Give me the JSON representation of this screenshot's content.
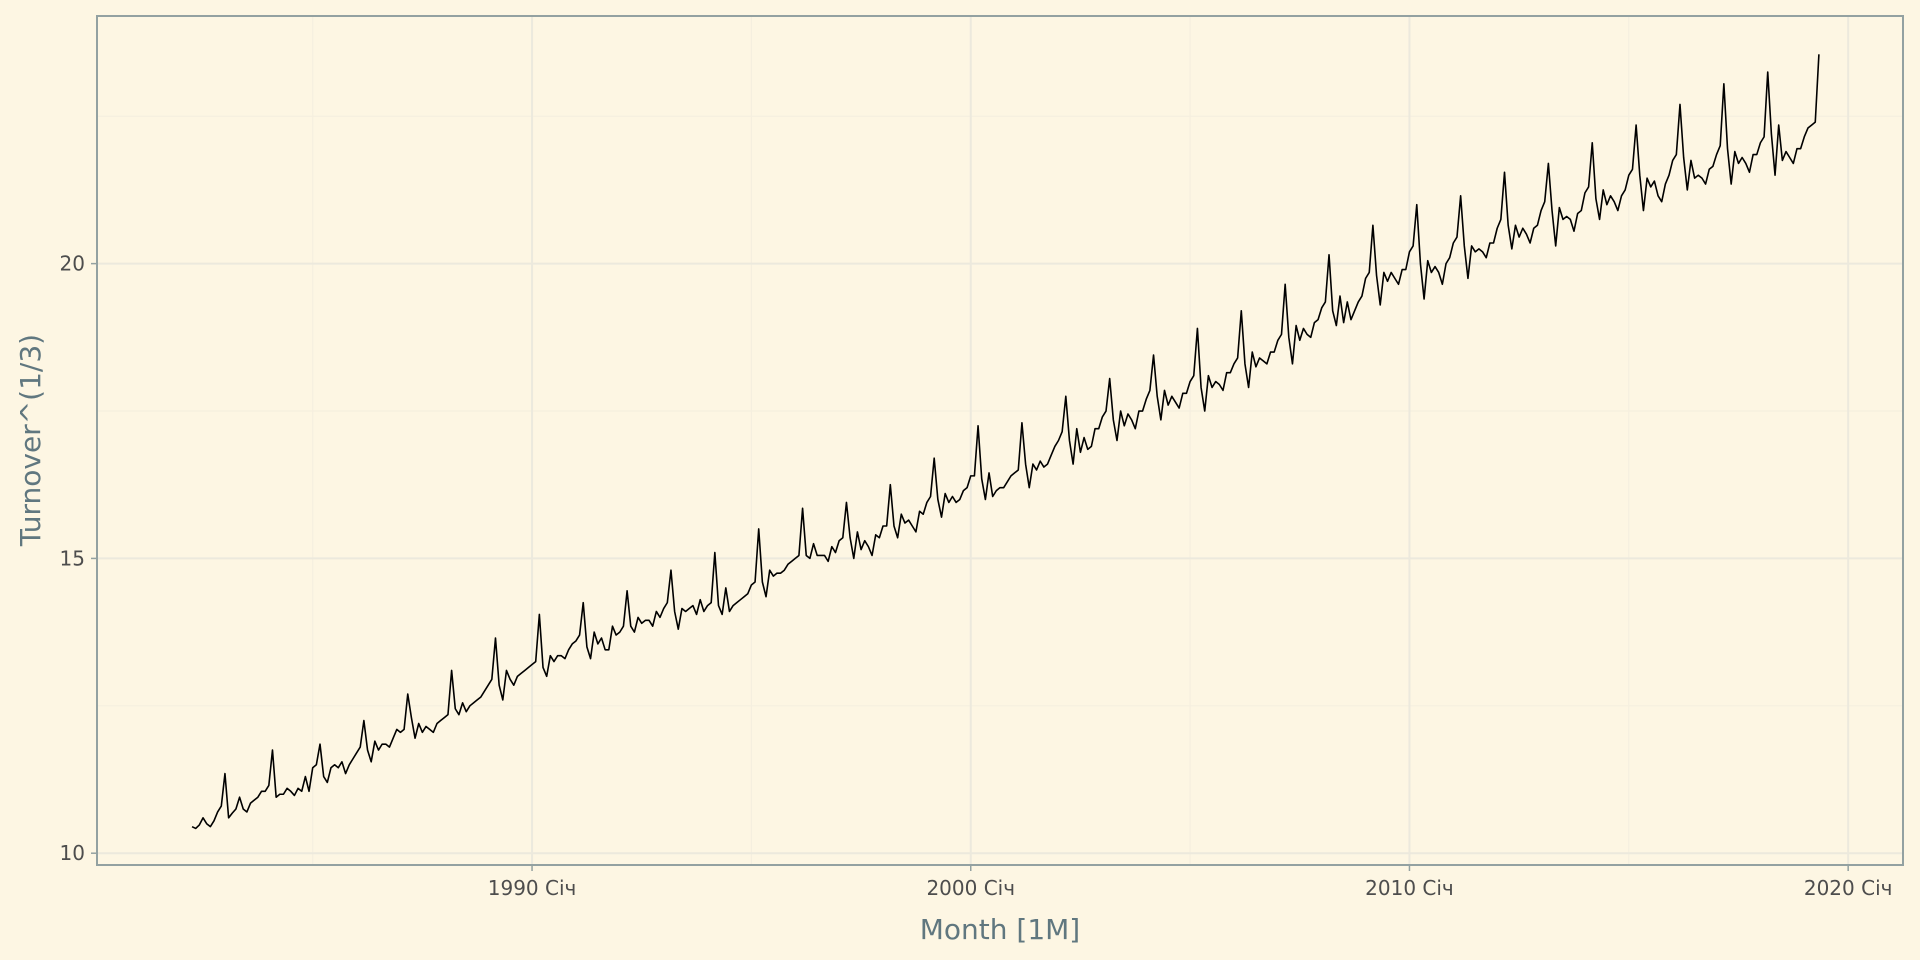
{
  "chart_data": {
    "type": "line",
    "title": "",
    "xlabel": "Month [1M]",
    "ylabel": "Turnover^(1/3)",
    "x_ticks": [
      {
        "year": 1990,
        "label": "1990 Січ"
      },
      {
        "year": 2000,
        "label": "2000 Січ"
      },
      {
        "year": 2010,
        "label": "2010 Січ"
      },
      {
        "year": 2020,
        "label": "2020 Січ"
      }
    ],
    "y_ticks": [
      10,
      15,
      20
    ],
    "xlim": [
      "1980-02",
      "2021-04"
    ],
    "ylim": [
      9.8,
      24.2
    ],
    "grid": true,
    "colors": {
      "background": "#fdf6e3",
      "panel_border": "#93a1a1",
      "grid_major": "#ece9dd",
      "grid_minor": "#f5efdf",
      "line": "#000000",
      "axis_title": "#60777f",
      "tick_text": "#4d4d4d"
    },
    "series": [
      {
        "start_month": "1982-04",
        "values": [
          10.45,
          10.42,
          10.48,
          10.6,
          10.5,
          10.45,
          10.55,
          10.7,
          10.8,
          11.35,
          10.6,
          10.68,
          10.75,
          10.95,
          10.75,
          10.7,
          10.85,
          10.9,
          10.95,
          11.05,
          11.05,
          11.15,
          11.75,
          10.95,
          11.0,
          11.0,
          11.1,
          11.05,
          10.98,
          11.1,
          11.05,
          11.3,
          11.05,
          11.45,
          11.5,
          11.85,
          11.3,
          11.2,
          11.45,
          11.5,
          11.45,
          11.55,
          11.35,
          11.5,
          11.6,
          11.7,
          11.8,
          12.25,
          11.75,
          11.55,
          11.9,
          11.75,
          11.85,
          11.85,
          11.8,
          11.95,
          12.1,
          12.05,
          12.1,
          12.7,
          12.3,
          11.95,
          12.2,
          12.05,
          12.15,
          12.1,
          12.05,
          12.2,
          12.25,
          12.3,
          12.35,
          13.1,
          12.45,
          12.35,
          12.55,
          12.4,
          12.5,
          12.55,
          12.6,
          12.65,
          12.75,
          12.85,
          12.95,
          13.65,
          12.85,
          12.6,
          13.1,
          12.95,
          12.85,
          13.0,
          13.05,
          13.1,
          13.15,
          13.2,
          13.25,
          14.05,
          13.15,
          13.0,
          13.35,
          13.25,
          13.35,
          13.35,
          13.3,
          13.45,
          13.55,
          13.6,
          13.7,
          14.25,
          13.5,
          13.3,
          13.75,
          13.55,
          13.65,
          13.45,
          13.45,
          13.85,
          13.7,
          13.75,
          13.85,
          14.45,
          13.85,
          13.75,
          14.0,
          13.9,
          13.95,
          13.95,
          13.85,
          14.1,
          14.0,
          14.15,
          14.25,
          14.8,
          14.1,
          13.8,
          14.15,
          14.1,
          14.15,
          14.2,
          14.05,
          14.3,
          14.1,
          14.2,
          14.25,
          15.1,
          14.2,
          14.05,
          14.5,
          14.1,
          14.2,
          14.25,
          14.3,
          14.35,
          14.4,
          14.55,
          14.6,
          15.5,
          14.6,
          14.35,
          14.8,
          14.7,
          14.75,
          14.75,
          14.8,
          14.9,
          14.95,
          15.0,
          15.05,
          15.85,
          15.05,
          15.0,
          15.25,
          15.05,
          15.05,
          15.05,
          14.95,
          15.2,
          15.1,
          15.3,
          15.35,
          15.95,
          15.35,
          15.0,
          15.45,
          15.15,
          15.3,
          15.2,
          15.05,
          15.4,
          15.35,
          15.55,
          15.55,
          16.25,
          15.55,
          15.35,
          15.75,
          15.6,
          15.65,
          15.55,
          15.45,
          15.8,
          15.75,
          15.95,
          16.05,
          16.7,
          16.0,
          15.7,
          16.1,
          15.95,
          16.05,
          15.95,
          16.0,
          16.15,
          16.2,
          16.4,
          16.4,
          17.25,
          16.35,
          16.0,
          16.45,
          16.05,
          16.15,
          16.2,
          16.2,
          16.3,
          16.4,
          16.45,
          16.5,
          17.3,
          16.6,
          16.2,
          16.6,
          16.5,
          16.65,
          16.55,
          16.6,
          16.75,
          16.9,
          17.0,
          17.15,
          17.75,
          17.0,
          16.6,
          17.2,
          16.8,
          17.05,
          16.85,
          16.9,
          17.2,
          17.2,
          17.4,
          17.5,
          18.05,
          17.35,
          17.0,
          17.5,
          17.25,
          17.45,
          17.35,
          17.2,
          17.5,
          17.5,
          17.7,
          17.85,
          18.45,
          17.75,
          17.35,
          17.85,
          17.6,
          17.75,
          17.65,
          17.55,
          17.8,
          17.8,
          18.0,
          18.1,
          18.9,
          17.9,
          17.5,
          18.1,
          17.9,
          18.0,
          17.95,
          17.85,
          18.15,
          18.15,
          18.3,
          18.4,
          19.2,
          18.3,
          17.9,
          18.5,
          18.25,
          18.4,
          18.35,
          18.3,
          18.5,
          18.5,
          18.7,
          18.8,
          19.65,
          18.75,
          18.3,
          18.95,
          18.7,
          18.9,
          18.8,
          18.75,
          19.0,
          19.05,
          19.25,
          19.35,
          20.15,
          19.2,
          18.95,
          19.45,
          19.0,
          19.35,
          19.05,
          19.2,
          19.35,
          19.45,
          19.75,
          19.85,
          20.65,
          19.8,
          19.3,
          19.85,
          19.7,
          19.85,
          19.75,
          19.65,
          19.9,
          19.9,
          20.2,
          20.3,
          21.0,
          20.0,
          19.4,
          20.05,
          19.85,
          19.95,
          19.85,
          19.65,
          20.0,
          20.1,
          20.35,
          20.45,
          21.15,
          20.3,
          19.75,
          20.3,
          20.2,
          20.25,
          20.2,
          20.1,
          20.35,
          20.35,
          20.6,
          20.75,
          21.55,
          20.65,
          20.25,
          20.65,
          20.45,
          20.6,
          20.5,
          20.35,
          20.6,
          20.65,
          20.9,
          21.05,
          21.7,
          20.9,
          20.3,
          20.95,
          20.75,
          20.8,
          20.75,
          20.55,
          20.85,
          20.9,
          21.2,
          21.3,
          22.05,
          21.1,
          20.75,
          21.25,
          21.0,
          21.15,
          21.05,
          20.9,
          21.15,
          21.25,
          21.5,
          21.6,
          22.35,
          21.5,
          20.9,
          21.45,
          21.3,
          21.4,
          21.15,
          21.05,
          21.35,
          21.5,
          21.75,
          21.85,
          22.7,
          21.8,
          21.25,
          21.75,
          21.45,
          21.5,
          21.45,
          21.35,
          21.6,
          21.65,
          21.85,
          22.0,
          23.05,
          21.95,
          21.35,
          21.9,
          21.7,
          21.8,
          21.7,
          21.55,
          21.85,
          21.85,
          22.05,
          22.15,
          23.25,
          22.2,
          21.5,
          22.35,
          21.75,
          21.9,
          21.8,
          21.7,
          21.95,
          21.95,
          22.15,
          22.3,
          22.35,
          22.4,
          23.55
        ]
      }
    ]
  }
}
